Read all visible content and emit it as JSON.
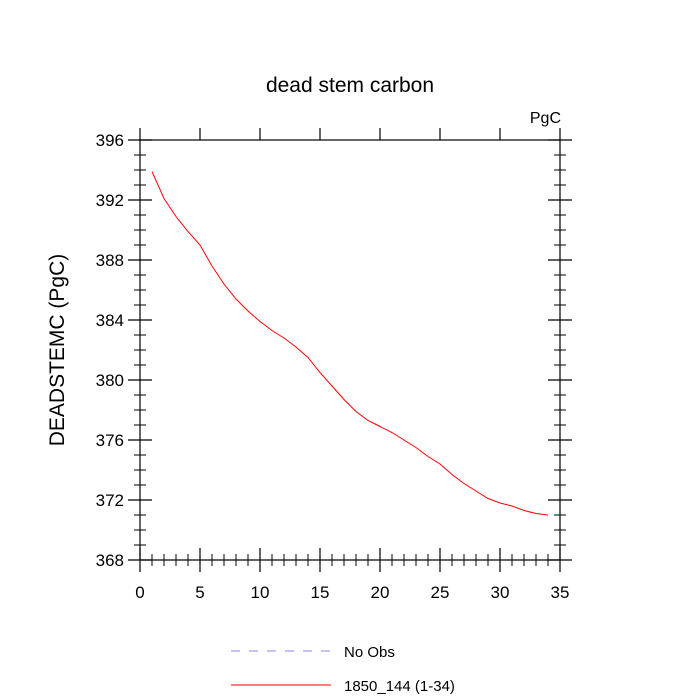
{
  "chart_data": {
    "type": "line",
    "title": "dead stem carbon",
    "units_label": "PgC",
    "xlabel": "",
    "ylabel": "DEADSTEMC  (PgC)",
    "xlim": [
      0,
      35
    ],
    "ylim": [
      368,
      396
    ],
    "x_ticks": [
      0,
      5,
      10,
      15,
      20,
      25,
      30,
      35
    ],
    "x_tick_labels": [
      "0",
      "5",
      "10",
      "15",
      "20",
      "25",
      "30",
      "35"
    ],
    "y_ticks": [
      368,
      372,
      376,
      380,
      384,
      388,
      392,
      396
    ],
    "y_tick_labels": [
      "368",
      "372",
      "376",
      "380",
      "384",
      "388",
      "392",
      "396"
    ],
    "grid": false,
    "legend_position": "bottom",
    "series": [
      {
        "name": "1850_144 (1-34)",
        "color": "#ff0000",
        "style": "solid",
        "x": [
          1,
          2,
          3,
          4,
          5,
          6,
          7,
          8,
          9,
          10,
          11,
          12,
          13,
          14,
          15,
          16,
          17,
          18,
          19,
          20,
          21,
          22,
          23,
          24,
          25,
          26,
          27,
          28,
          29,
          30,
          31,
          32,
          33,
          34
        ],
        "values": [
          393.9,
          392.1,
          390.9,
          389.9,
          389.0,
          387.6,
          386.4,
          385.4,
          384.6,
          383.9,
          383.3,
          382.8,
          382.2,
          381.5,
          380.5,
          379.6,
          378.7,
          377.9,
          377.3,
          376.9,
          376.5,
          376.0,
          375.5,
          374.9,
          374.4,
          373.7,
          373.1,
          372.6,
          372.1,
          371.8,
          371.6,
          371.3,
          371.1,
          371.0
        ]
      }
    ],
    "legend": [
      {
        "label": "No Obs",
        "color": "#8a8ae6",
        "style": "dashed"
      },
      {
        "label": "1850_144 (1-34)",
        "color": "#ff0000",
        "style": "solid"
      }
    ]
  }
}
